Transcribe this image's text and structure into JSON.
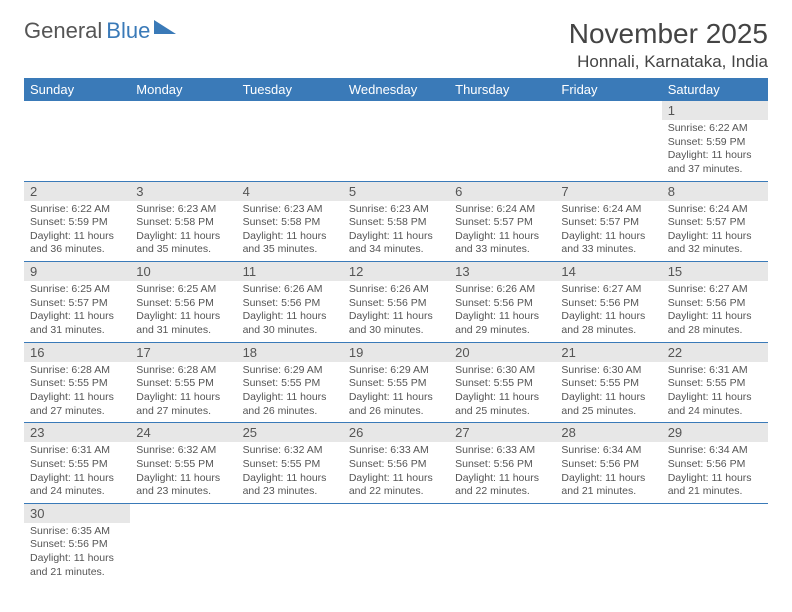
{
  "brand": {
    "name1": "General",
    "name2": "Blue"
  },
  "title": "November 2025",
  "location": "Honnali, Karnataka, India",
  "weekdays": [
    "Sunday",
    "Monday",
    "Tuesday",
    "Wednesday",
    "Thursday",
    "Friday",
    "Saturday"
  ],
  "colors": {
    "accent": "#3a7ab8",
    "daynum_bg": "#e7e7e7",
    "text": "#555555"
  },
  "weeks": [
    [
      null,
      null,
      null,
      null,
      null,
      null,
      {
        "n": "1",
        "sr": "6:22 AM",
        "ss": "5:59 PM",
        "dl": "11 hours and 37 minutes."
      }
    ],
    [
      {
        "n": "2",
        "sr": "6:22 AM",
        "ss": "5:59 PM",
        "dl": "11 hours and 36 minutes."
      },
      {
        "n": "3",
        "sr": "6:23 AM",
        "ss": "5:58 PM",
        "dl": "11 hours and 35 minutes."
      },
      {
        "n": "4",
        "sr": "6:23 AM",
        "ss": "5:58 PM",
        "dl": "11 hours and 35 minutes."
      },
      {
        "n": "5",
        "sr": "6:23 AM",
        "ss": "5:58 PM",
        "dl": "11 hours and 34 minutes."
      },
      {
        "n": "6",
        "sr": "6:24 AM",
        "ss": "5:57 PM",
        "dl": "11 hours and 33 minutes."
      },
      {
        "n": "7",
        "sr": "6:24 AM",
        "ss": "5:57 PM",
        "dl": "11 hours and 33 minutes."
      },
      {
        "n": "8",
        "sr": "6:24 AM",
        "ss": "5:57 PM",
        "dl": "11 hours and 32 minutes."
      }
    ],
    [
      {
        "n": "9",
        "sr": "6:25 AM",
        "ss": "5:57 PM",
        "dl": "11 hours and 31 minutes."
      },
      {
        "n": "10",
        "sr": "6:25 AM",
        "ss": "5:56 PM",
        "dl": "11 hours and 31 minutes."
      },
      {
        "n": "11",
        "sr": "6:26 AM",
        "ss": "5:56 PM",
        "dl": "11 hours and 30 minutes."
      },
      {
        "n": "12",
        "sr": "6:26 AM",
        "ss": "5:56 PM",
        "dl": "11 hours and 30 minutes."
      },
      {
        "n": "13",
        "sr": "6:26 AM",
        "ss": "5:56 PM",
        "dl": "11 hours and 29 minutes."
      },
      {
        "n": "14",
        "sr": "6:27 AM",
        "ss": "5:56 PM",
        "dl": "11 hours and 28 minutes."
      },
      {
        "n": "15",
        "sr": "6:27 AM",
        "ss": "5:56 PM",
        "dl": "11 hours and 28 minutes."
      }
    ],
    [
      {
        "n": "16",
        "sr": "6:28 AM",
        "ss": "5:55 PM",
        "dl": "11 hours and 27 minutes."
      },
      {
        "n": "17",
        "sr": "6:28 AM",
        "ss": "5:55 PM",
        "dl": "11 hours and 27 minutes."
      },
      {
        "n": "18",
        "sr": "6:29 AM",
        "ss": "5:55 PM",
        "dl": "11 hours and 26 minutes."
      },
      {
        "n": "19",
        "sr": "6:29 AM",
        "ss": "5:55 PM",
        "dl": "11 hours and 26 minutes."
      },
      {
        "n": "20",
        "sr": "6:30 AM",
        "ss": "5:55 PM",
        "dl": "11 hours and 25 minutes."
      },
      {
        "n": "21",
        "sr": "6:30 AM",
        "ss": "5:55 PM",
        "dl": "11 hours and 25 minutes."
      },
      {
        "n": "22",
        "sr": "6:31 AM",
        "ss": "5:55 PM",
        "dl": "11 hours and 24 minutes."
      }
    ],
    [
      {
        "n": "23",
        "sr": "6:31 AM",
        "ss": "5:55 PM",
        "dl": "11 hours and 24 minutes."
      },
      {
        "n": "24",
        "sr": "6:32 AM",
        "ss": "5:55 PM",
        "dl": "11 hours and 23 minutes."
      },
      {
        "n": "25",
        "sr": "6:32 AM",
        "ss": "5:55 PM",
        "dl": "11 hours and 23 minutes."
      },
      {
        "n": "26",
        "sr": "6:33 AM",
        "ss": "5:56 PM",
        "dl": "11 hours and 22 minutes."
      },
      {
        "n": "27",
        "sr": "6:33 AM",
        "ss": "5:56 PM",
        "dl": "11 hours and 22 minutes."
      },
      {
        "n": "28",
        "sr": "6:34 AM",
        "ss": "5:56 PM",
        "dl": "11 hours and 21 minutes."
      },
      {
        "n": "29",
        "sr": "6:34 AM",
        "ss": "5:56 PM",
        "dl": "11 hours and 21 minutes."
      }
    ],
    [
      {
        "n": "30",
        "sr": "6:35 AM",
        "ss": "5:56 PM",
        "dl": "11 hours and 21 minutes."
      },
      null,
      null,
      null,
      null,
      null,
      null
    ]
  ],
  "labels": {
    "sunrise": "Sunrise:",
    "sunset": "Sunset:",
    "daylight": "Daylight:"
  }
}
